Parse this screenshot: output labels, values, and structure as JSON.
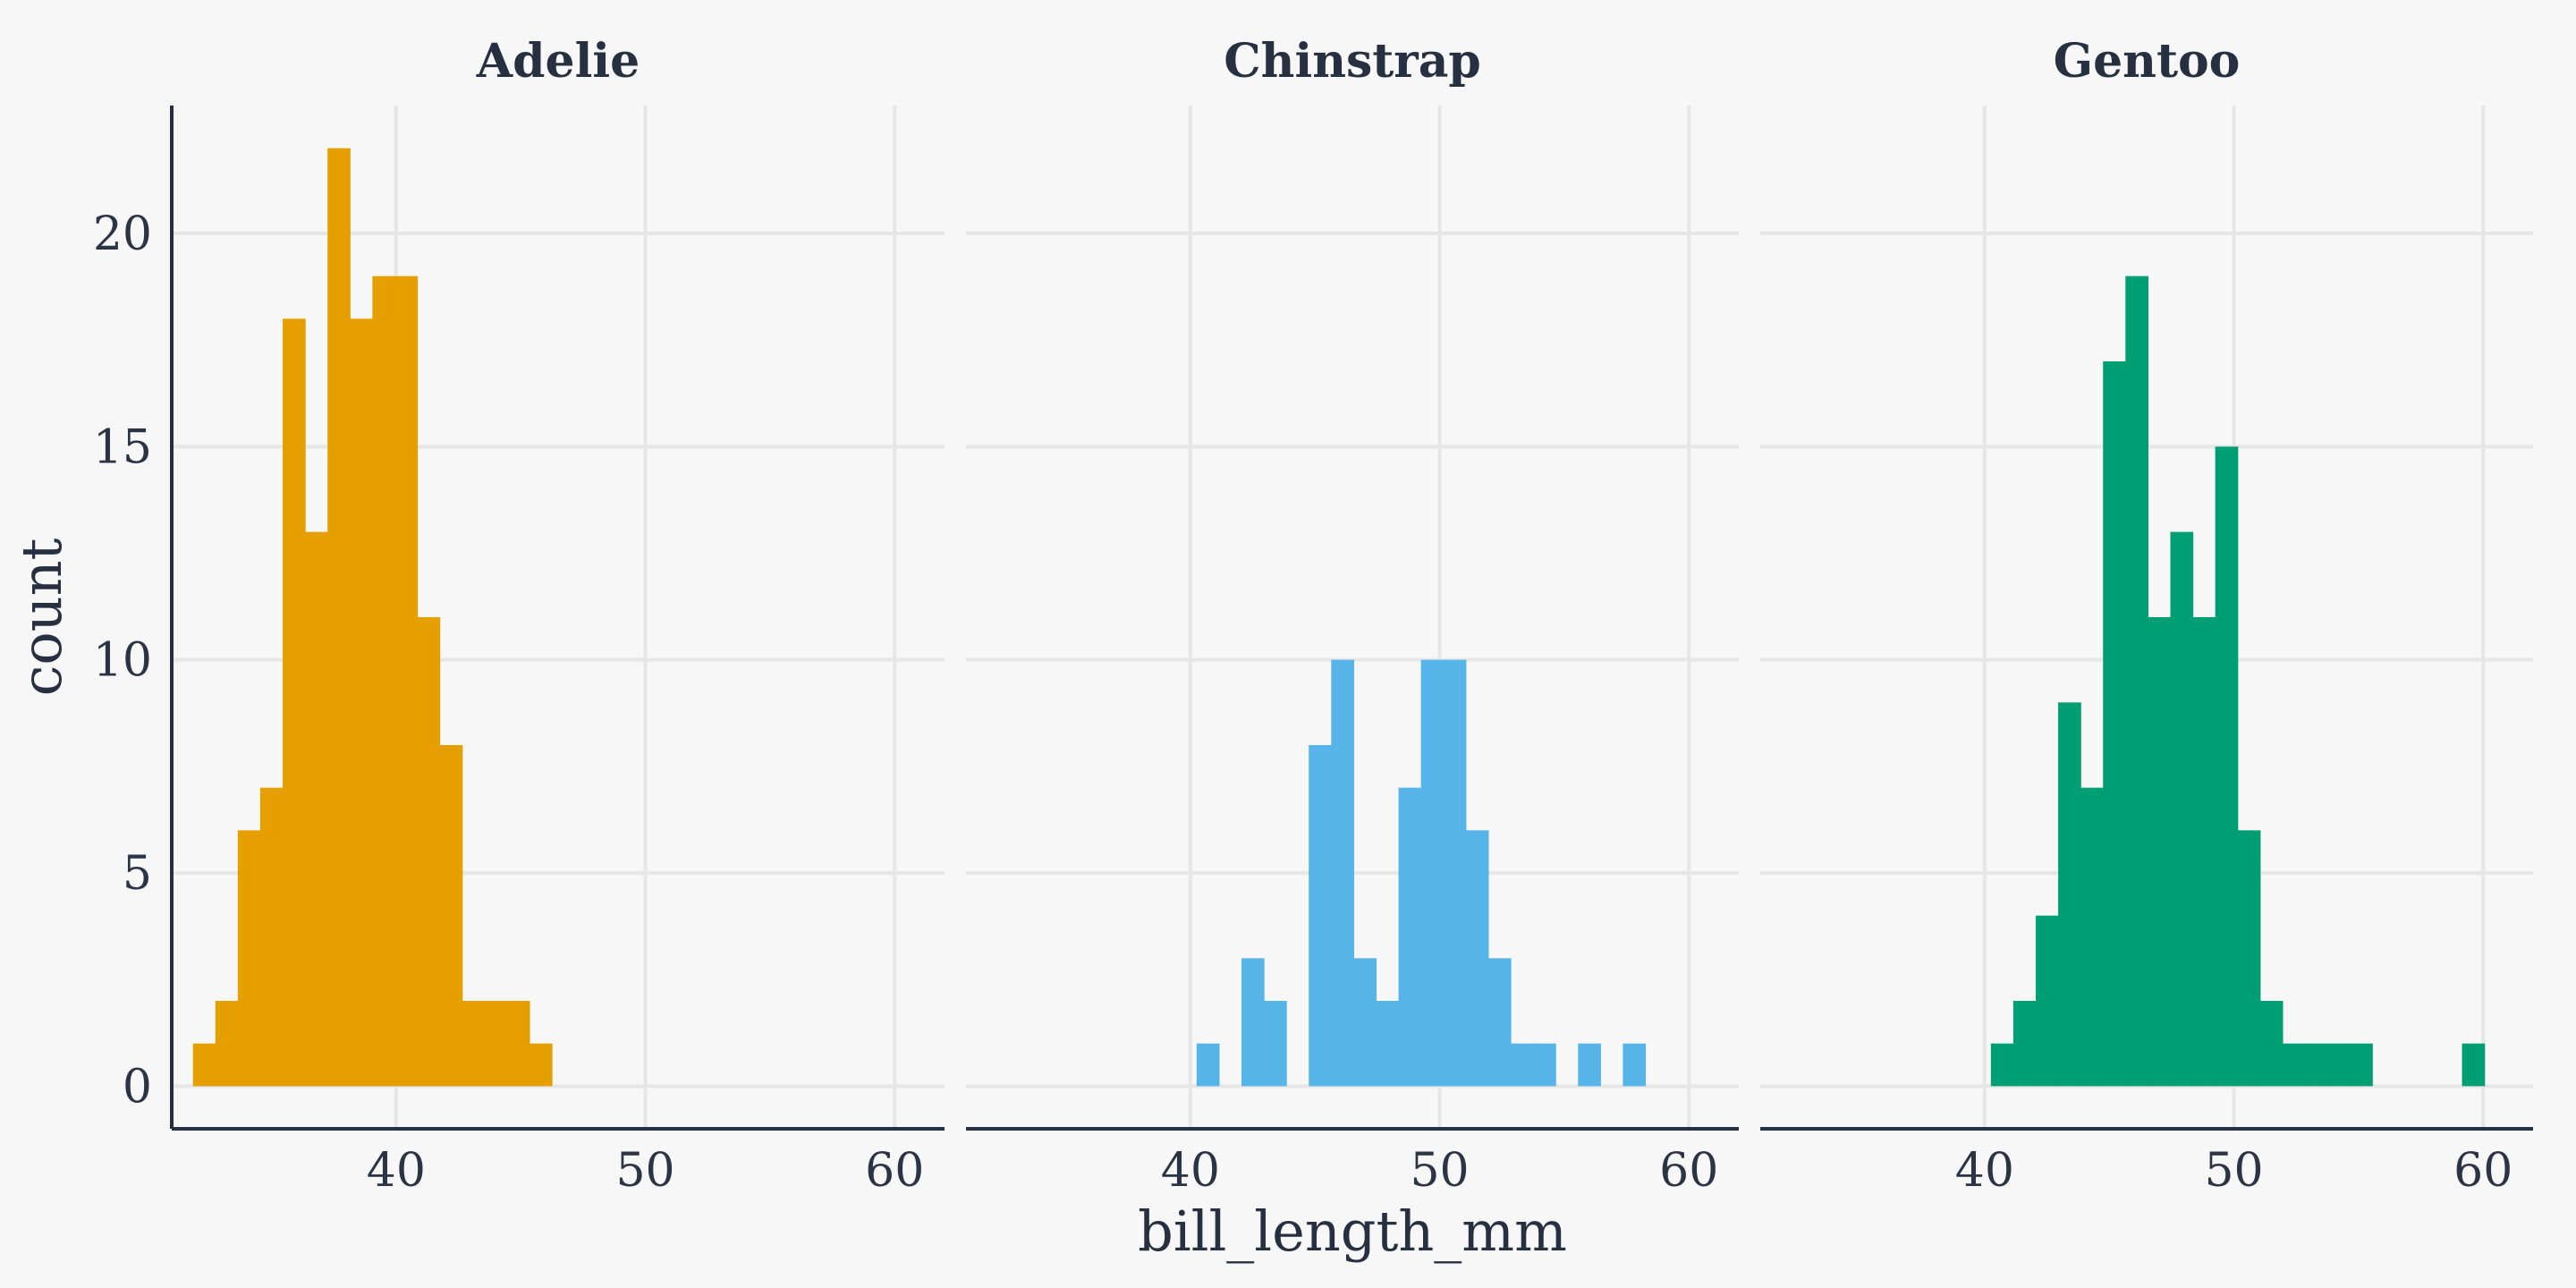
{
  "chart_data": {
    "type": "bar",
    "layout": "facets",
    "xlabel": "bill_length_mm",
    "ylabel": "count",
    "xlim": [
      31,
      62
    ],
    "ylim": [
      -1,
      23
    ],
    "x_ticks": [
      40,
      50,
      60
    ],
    "y_ticks": [
      0,
      5,
      10,
      15,
      20
    ],
    "grid": true,
    "bin_width": 0.9,
    "panels": [
      {
        "name": "Adelie",
        "color": "#E69F00",
        "bins": [
          {
            "x0": 31.85,
            "count": 1
          },
          {
            "x0": 32.75,
            "count": 2
          },
          {
            "x0": 33.65,
            "count": 6
          },
          {
            "x0": 34.55,
            "count": 7
          },
          {
            "x0": 35.45,
            "count": 18
          },
          {
            "x0": 36.35,
            "count": 13
          },
          {
            "x0": 37.25,
            "count": 22
          },
          {
            "x0": 38.15,
            "count": 18
          },
          {
            "x0": 39.05,
            "count": 19
          },
          {
            "x0": 39.95,
            "count": 19
          },
          {
            "x0": 40.85,
            "count": 11
          },
          {
            "x0": 41.75,
            "count": 8
          },
          {
            "x0": 42.65,
            "count": 2
          },
          {
            "x0": 43.55,
            "count": 2
          },
          {
            "x0": 44.45,
            "count": 2
          },
          {
            "x0": 45.35,
            "count": 1
          }
        ]
      },
      {
        "name": "Chinstrap",
        "color": "#56B4E9",
        "bins": [
          {
            "x0": 40.25,
            "count": 1
          },
          {
            "x0": 41.15,
            "count": 0
          },
          {
            "x0": 42.05,
            "count": 3
          },
          {
            "x0": 42.95,
            "count": 2
          },
          {
            "x0": 43.85,
            "count": 0
          },
          {
            "x0": 44.75,
            "count": 8
          },
          {
            "x0": 45.65,
            "count": 10
          },
          {
            "x0": 46.55,
            "count": 3
          },
          {
            "x0": 47.45,
            "count": 2
          },
          {
            "x0": 48.35,
            "count": 7
          },
          {
            "x0": 49.25,
            "count": 10
          },
          {
            "x0": 50.15,
            "count": 10
          },
          {
            "x0": 51.05,
            "count": 6
          },
          {
            "x0": 51.95,
            "count": 3
          },
          {
            "x0": 52.85,
            "count": 1
          },
          {
            "x0": 53.75,
            "count": 1
          },
          {
            "x0": 54.65,
            "count": 0
          },
          {
            "x0": 55.55,
            "count": 1
          },
          {
            "x0": 56.45,
            "count": 0
          },
          {
            "x0": 57.35,
            "count": 1
          }
        ]
      },
      {
        "name": "Gentoo",
        "color": "#009E73",
        "bins": [
          {
            "x0": 40.25,
            "count": 1
          },
          {
            "x0": 41.15,
            "count": 2
          },
          {
            "x0": 42.05,
            "count": 4
          },
          {
            "x0": 42.95,
            "count": 9
          },
          {
            "x0": 43.85,
            "count": 7
          },
          {
            "x0": 44.75,
            "count": 17
          },
          {
            "x0": 45.65,
            "count": 19
          },
          {
            "x0": 46.55,
            "count": 11
          },
          {
            "x0": 47.45,
            "count": 13
          },
          {
            "x0": 48.35,
            "count": 11
          },
          {
            "x0": 49.25,
            "count": 15
          },
          {
            "x0": 50.15,
            "count": 6
          },
          {
            "x0": 51.05,
            "count": 2
          },
          {
            "x0": 51.95,
            "count": 1
          },
          {
            "x0": 52.85,
            "count": 1
          },
          {
            "x0": 53.75,
            "count": 1
          },
          {
            "x0": 54.65,
            "count": 1
          },
          {
            "x0": 55.55,
            "count": 0
          },
          {
            "x0": 56.45,
            "count": 0
          },
          {
            "x0": 57.35,
            "count": 0
          },
          {
            "x0": 58.25,
            "count": 0
          },
          {
            "x0": 59.15,
            "count": 1
          }
        ]
      }
    ]
  }
}
